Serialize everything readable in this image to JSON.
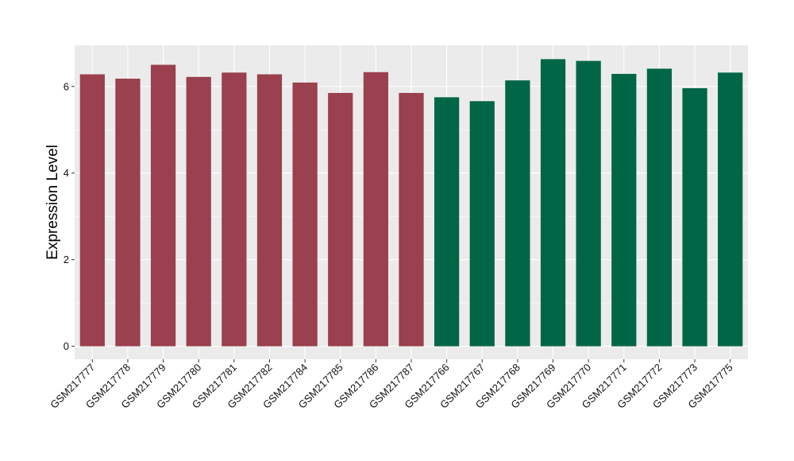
{
  "chart_data": {
    "type": "bar",
    "title": "",
    "xlabel": "",
    "ylabel": "Expression Level",
    "ylim": [
      -0.3,
      6.95
    ],
    "yticks": [
      0,
      2,
      4,
      6
    ],
    "grid": true,
    "legend": "none",
    "colors": {
      "group1": "#9a404e",
      "group2": "#006645",
      "panel": "#ebebeb",
      "grid": "#ffffff"
    },
    "categories": [
      "GSM217777",
      "GSM217778",
      "GSM217779",
      "GSM217780",
      "GSM217781",
      "GSM217782",
      "GSM217784",
      "GSM217785",
      "GSM217786",
      "GSM217787",
      "GSM217766",
      "GSM217767",
      "GSM217768",
      "GSM217769",
      "GSM217770",
      "GSM217771",
      "GSM217772",
      "GSM217773",
      "GSM217775"
    ],
    "values": [
      6.28,
      6.18,
      6.5,
      6.22,
      6.32,
      6.28,
      6.09,
      5.85,
      6.33,
      5.85,
      5.75,
      5.66,
      6.14,
      6.63,
      6.59,
      6.29,
      6.41,
      5.96,
      6.32
    ],
    "bar_groups": [
      "group1",
      "group1",
      "group1",
      "group1",
      "group1",
      "group1",
      "group1",
      "group1",
      "group1",
      "group1",
      "group2",
      "group2",
      "group2",
      "group2",
      "group2",
      "group2",
      "group2",
      "group2",
      "group2"
    ]
  }
}
